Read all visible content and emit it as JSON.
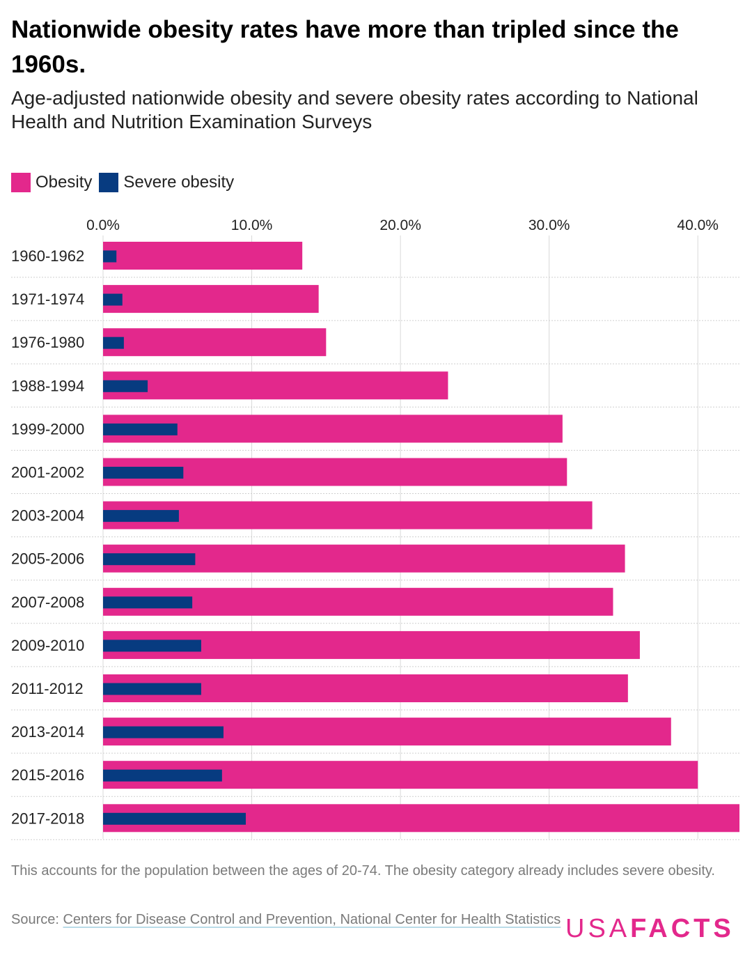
{
  "title": "Nationwide obesity rates have more than tripled since the 1960s.",
  "subtitle": "Age-adjusted nationwide obesity and severe obesity rates according to National Health and Nutrition Examination Surveys",
  "note": "This accounts for the population between the ages of 20-74. The obesity category already includes severe obesity.",
  "source": {
    "prefix": "Source: ",
    "link_text": "Centers for Disease Control and Prevention, National Center for Health Statistics"
  },
  "logo": {
    "part1": "USA",
    "part2": "FACTS"
  },
  "colors": {
    "obesity": "#e3288c",
    "severe": "#073b80",
    "grid": "#d9d9d9",
    "text": "#222222"
  },
  "chart_data": {
    "type": "bar",
    "orientation": "horizontal",
    "categories": [
      "1960-1962",
      "1971-1974",
      "1976-1980",
      "1988-1994",
      "1999-2000",
      "2001-2002",
      "2003-2004",
      "2005-2006",
      "2007-2008",
      "2009-2010",
      "2011-2012",
      "2013-2014",
      "2015-2016",
      "2017-2018"
    ],
    "series": [
      {
        "name": "Obesity",
        "color": "#e3288c",
        "values": [
          13.4,
          14.5,
          15.0,
          23.2,
          30.9,
          31.2,
          32.9,
          35.1,
          34.3,
          36.1,
          35.3,
          38.2,
          40.0,
          42.8
        ]
      },
      {
        "name": "Severe obesity",
        "color": "#073b80",
        "values": [
          0.9,
          1.3,
          1.4,
          3.0,
          5.0,
          5.4,
          5.1,
          6.2,
          6.0,
          6.6,
          6.6,
          8.1,
          8.0,
          9.6
        ]
      }
    ],
    "xlim": [
      0,
      42.8
    ],
    "xticks": [
      "0.0%",
      "10.0%",
      "20.0%",
      "30.0%",
      "40.0%"
    ],
    "xtick_values": [
      0,
      10,
      20,
      30,
      40
    ],
    "legend_position": "top-left",
    "grid": true
  }
}
